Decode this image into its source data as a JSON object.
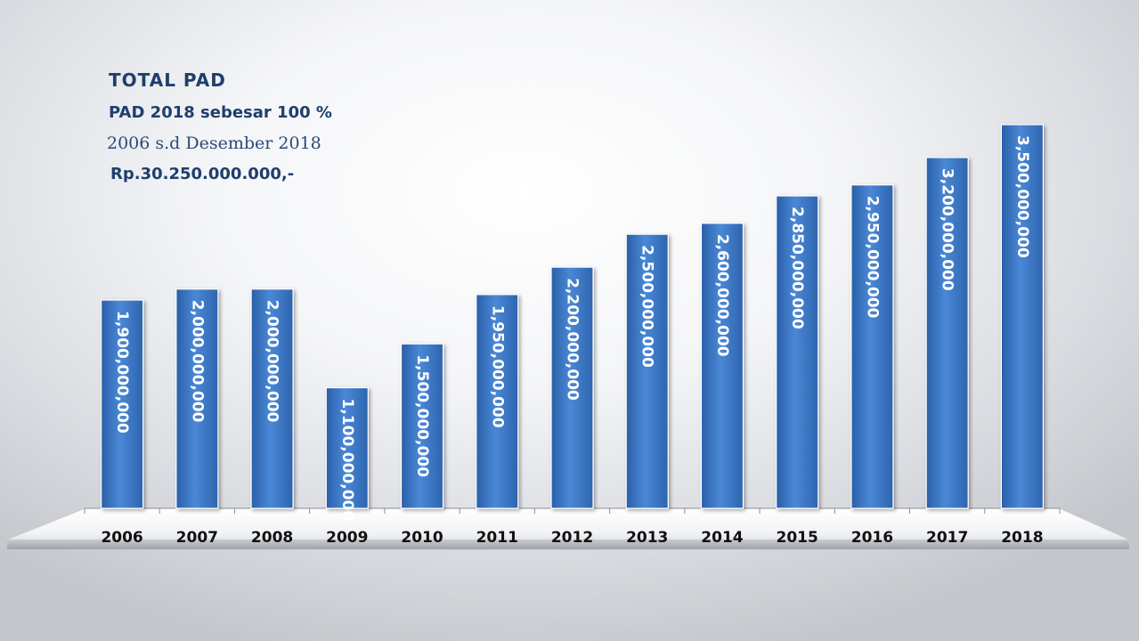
{
  "texts": {
    "title": "TOTAL PAD",
    "subtitle1": "PAD 2018 sebesar 100 %",
    "subtitle2": "2006 s.d Desember  2018",
    "subtitle3": "Rp.30.250.000.000,-"
  },
  "colors": {
    "bar": "#3c78c8",
    "bar_label": "#ffffff",
    "text": "#1f3e6e"
  },
  "chart_data": {
    "type": "bar",
    "title": "TOTAL PAD",
    "categories": [
      "2006",
      "2007",
      "2008",
      "2009",
      "2010",
      "2011",
      "2012",
      "2013",
      "2014",
      "2015",
      "2016",
      "2017",
      "2018"
    ],
    "values": [
      1900000000,
      2000000000,
      2000000000,
      1100000000,
      1500000000,
      1950000000,
      2200000000,
      2500000000,
      2600000000,
      2850000000,
      2950000000,
      3200000000,
      3500000000
    ],
    "data_labels": [
      "1,900,000,000",
      "2,000,000,000",
      "2,000,000,000",
      "1,100,000,000",
      "1,500,000,000",
      "1,950,000,000",
      "2,200,000,000",
      "2,500,000,000",
      "2,600,000,000",
      "2,850,000,000",
      "2,950,000,000",
      "3,200,000,000",
      "3,500,000,000"
    ],
    "ylim": [
      0,
      3500000000
    ],
    "grid": false,
    "legend": "none"
  }
}
